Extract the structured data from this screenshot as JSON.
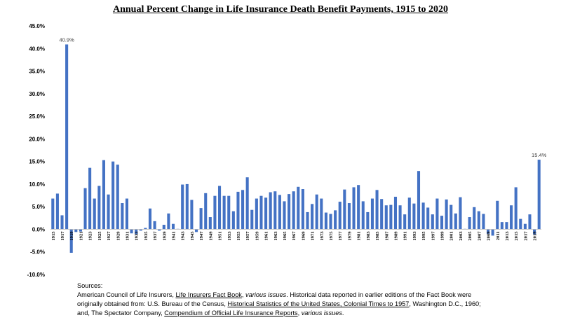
{
  "chart_data": {
    "type": "bar",
    "title": "Annual Percent Change in Life Insurance Death Benefit Payments, 1915 to 2020",
    "xlabel": "",
    "ylabel": "",
    "ylim": [
      -10,
      45
    ],
    "yticks": [
      -10,
      -5,
      0,
      5,
      10,
      15,
      20,
      25,
      30,
      35,
      40,
      45
    ],
    "ytick_labels": [
      "-10.0%",
      "-5.0%",
      "0.0%",
      "5.0%",
      "10.0%",
      "15.0%",
      "20.0%",
      "25.0%",
      "30.0%",
      "35.0%",
      "40.0%",
      "45.0%"
    ],
    "categories": [
      1915,
      1916,
      1917,
      1918,
      1919,
      1920,
      1921,
      1922,
      1923,
      1924,
      1925,
      1926,
      1927,
      1928,
      1929,
      1930,
      1931,
      1932,
      1933,
      1934,
      1935,
      1936,
      1937,
      1938,
      1939,
      1940,
      1941,
      1942,
      1943,
      1944,
      1945,
      1946,
      1947,
      1948,
      1949,
      1950,
      1951,
      1952,
      1953,
      1954,
      1955,
      1956,
      1957,
      1958,
      1959,
      1960,
      1961,
      1962,
      1963,
      1964,
      1965,
      1966,
      1967,
      1968,
      1969,
      1970,
      1971,
      1972,
      1973,
      1974,
      1975,
      1976,
      1977,
      1978,
      1979,
      1980,
      1981,
      1982,
      1983,
      1984,
      1985,
      1986,
      1987,
      1988,
      1989,
      1990,
      1991,
      1992,
      1993,
      1994,
      1995,
      1996,
      1997,
      1998,
      1999,
      2000,
      2001,
      2002,
      2003,
      2004,
      2005,
      2006,
      2007,
      2008,
      2009,
      2010,
      2011,
      2012,
      2013,
      2014,
      2015,
      2016,
      2017,
      2018,
      2019,
      2020
    ],
    "xtick_labels": [
      "1915",
      "1917",
      "1919",
      "1921",
      "1923",
      "1925",
      "1927",
      "1929",
      "1931",
      "1933",
      "1935",
      "1937",
      "1939",
      "1941",
      "1943",
      "1945",
      "1947",
      "1949",
      "1951",
      "1953",
      "1955",
      "1957",
      "1959",
      "1961",
      "1963",
      "1965",
      "1967",
      "1969",
      "1971",
      "1973",
      "1975",
      "1977",
      "1979",
      "1981",
      "1983",
      "1985",
      "1987",
      "1989",
      "1991",
      "1993",
      "1995",
      "1997",
      "1999",
      "2001",
      "2003",
      "2005",
      "2007",
      "2009",
      "2011",
      "2013",
      "2015",
      "2017",
      "2019"
    ],
    "values": [
      6.8,
      7.9,
      3.1,
      40.9,
      -5.2,
      -0.6,
      -0.5,
      9.1,
      13.6,
      6.8,
      9.6,
      15.3,
      7.7,
      15.0,
      14.3,
      5.8,
      6.8,
      -0.9,
      -1.1,
      -0.3,
      0.3,
      4.6,
      1.8,
      -0.3,
      1.0,
      3.5,
      1.2,
      0.1,
      9.9,
      10.0,
      6.5,
      -0.6,
      4.7,
      8.0,
      2.7,
      7.4,
      9.6,
      7.4,
      7.4,
      4.0,
      8.3,
      8.7,
      11.5,
      4.3,
      6.8,
      7.4,
      7.0,
      8.2,
      8.4,
      7.6,
      6.2,
      7.8,
      8.4,
      9.4,
      8.9,
      3.8,
      5.6,
      7.7,
      6.8,
      3.7,
      3.4,
      4.2,
      6.1,
      8.8,
      5.8,
      9.3,
      9.8,
      6.2,
      3.8,
      6.8,
      8.7,
      6.7,
      5.3,
      5.4,
      7.2,
      5.3,
      3.3,
      7.0,
      5.7,
      12.9,
      5.9,
      4.8,
      3.3,
      6.8,
      3.0,
      6.6,
      5.4,
      3.5,
      7.1,
      0.1,
      2.7,
      4.9,
      4.0,
      3.4,
      -1.0,
      -1.4,
      6.3,
      1.6,
      1.6,
      5.3,
      9.3,
      2.3,
      1.2,
      3.3,
      -1.1,
      15.4
    ],
    "data_labels": [
      {
        "category": 1918,
        "text": "40.9%"
      },
      {
        "category": 2020,
        "text": "15.4%"
      }
    ],
    "bar_color": "#4472c4",
    "grid": false,
    "legend": "none"
  },
  "sources": {
    "heading": "Sources:",
    "l1_a": "American Council of Life Insurers, ",
    "l1_b": "Life Insurers Fact Book",
    "l1_c": ", ",
    "l1_d": "various issues",
    "l1_e": ".  Historical data reported in earlier editions of the Fact Book were",
    "l2_a": "originally obtained from:  U.S. Bureau of the Census, ",
    "l2_b": "Historical Statistics of the United States, Colonial Times to 1957",
    "l2_c": ", Washington D.C., 1960;",
    "l3_a": "and, The Spectator Company, ",
    "l3_b": "Compendium of Official Life Insurance Reports",
    "l3_c": ", ",
    "l3_d": "various issues",
    "l3_e": "."
  }
}
